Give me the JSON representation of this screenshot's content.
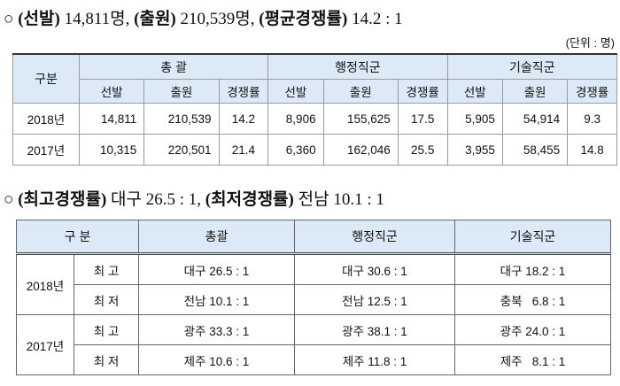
{
  "heading1": [
    "○ ",
    "(선발)",
    " 14,811명, ",
    "(출원)",
    " 210,539명, ",
    "(평균경쟁률)",
    " 14.2 : 1"
  ],
  "unit": "(단위 : 명)",
  "table1": {
    "group_header": [
      "구분",
      "총 괄",
      "행정직군",
      "기술직군"
    ],
    "sub_header": [
      "선발",
      "출원",
      "경쟁률",
      "선발",
      "출원",
      "경쟁률",
      "선발",
      "출원",
      "경쟁률"
    ],
    "rows": [
      [
        "2018년",
        "14,811",
        "210,539",
        "14.2",
        "8,906",
        "155,625",
        "17.5",
        "5,905",
        "54,914",
        "9.3"
      ],
      [
        "2017년",
        "10,315",
        "220,501",
        "21.4",
        "6,360",
        "162,046",
        "25.5",
        "3,955",
        "58,455",
        "14.8"
      ]
    ]
  },
  "heading2": [
    "○ ",
    "(최고경쟁률)",
    " 대구 26.5 : 1, ",
    "(최저경쟁률)",
    " 전남 10.1 : 1"
  ],
  "table2": {
    "header": [
      "구 분",
      "총괄",
      "행정직군",
      "기술직군"
    ],
    "groups": [
      {
        "year": "2018년",
        "rows": [
          [
            "최 고",
            "대구 26.5 : 1",
            "대구 30.6 : 1",
            "대구 18.2 : 1"
          ],
          [
            "최 저",
            "전남 10.1 : 1",
            "전남 12.5 : 1",
            "충북   6.8 : 1"
          ]
        ]
      },
      {
        "year": "2017년",
        "rows": [
          [
            "최 고",
            "광주 33.3 : 1",
            "광주 38.1 : 1",
            "광주 24.0 : 1"
          ],
          [
            "최 저",
            "제주 10.6 : 1",
            "제주 11.8 : 1",
            "제주   8.1 : 1"
          ]
        ]
      }
    ]
  }
}
